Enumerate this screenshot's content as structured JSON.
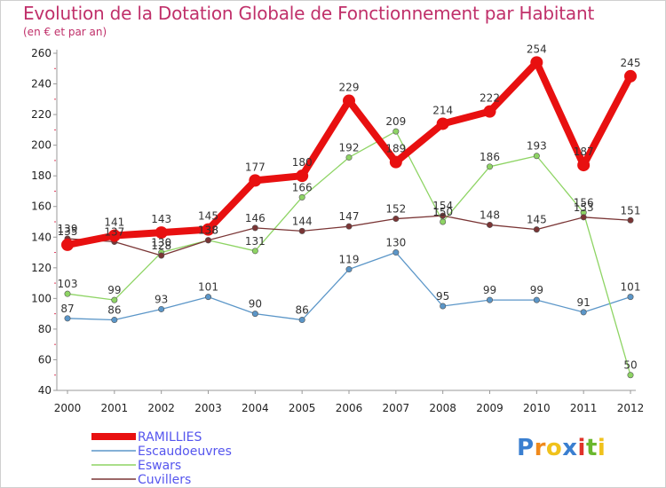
{
  "title": "Evolution de la Dotation Globale de Fonctionnement par Habitant",
  "subtitle": "(en € et par an)",
  "brand": {
    "text": "Proxiti",
    "letters": [
      [
        "P",
        "#3a7fd0"
      ],
      [
        "r",
        "#f08a1c"
      ],
      [
        "o",
        "#f0c21c"
      ],
      [
        "x",
        "#3a7fd0"
      ],
      [
        "i",
        "#e0322a"
      ],
      [
        "t",
        "#6ab82e"
      ],
      [
        "i",
        "#f0c21c"
      ]
    ]
  },
  "chart_data": {
    "type": "line",
    "title": "Evolution de la Dotation Globale de Fonctionnement par Habitant",
    "subtitle": "(en € et par an)",
    "x": [
      "2000",
      "2001",
      "2002",
      "2003",
      "2004",
      "2005",
      "2006",
      "2007",
      "2008",
      "2009",
      "2010",
      "2011",
      "2012"
    ],
    "ylim": [
      40,
      260
    ],
    "yticks": [
      40,
      60,
      80,
      100,
      120,
      140,
      160,
      180,
      200,
      220,
      240,
      260
    ],
    "grid": false,
    "legend_position": "bottom-left",
    "series": [
      {
        "name": "RAMILLIES",
        "color": "#e81010",
        "values": [
          135,
          141,
          143,
          145,
          177,
          180,
          229,
          189,
          214,
          222,
          254,
          187,
          245
        ]
      },
      {
        "name": "Escaudoeuvres",
        "color": "#5b96c8",
        "values": [
          87,
          86,
          93,
          101,
          90,
          86,
          119,
          130,
          95,
          99,
          99,
          91,
          101
        ]
      },
      {
        "name": "Eswars",
        "color": "#8ed464",
        "values": [
          103,
          99,
          130,
          138,
          131,
          166,
          192,
          209,
          150,
          186,
          193,
          156,
          50
        ]
      },
      {
        "name": "Cuvillers",
        "color": "#7a3535",
        "values": [
          139,
          137,
          128,
          138,
          146,
          144,
          147,
          152,
          154,
          148,
          145,
          153,
          151
        ]
      }
    ]
  }
}
